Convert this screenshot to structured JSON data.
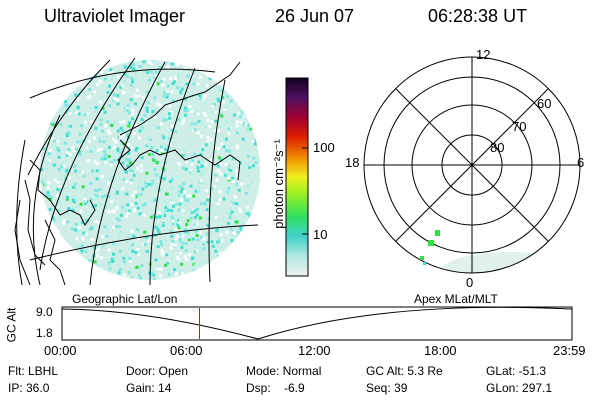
{
  "header": {
    "instrument": "Ultraviolet Imager",
    "date": "26 Jun 07",
    "time": "06:28:38 UT"
  },
  "colorbar": {
    "unit_label": "photon cm⁻²s⁻¹",
    "ticks": [
      "100",
      "10"
    ]
  },
  "polar": {
    "mlt_labels": [
      "12",
      "18",
      "6",
      "0"
    ],
    "lat_labels": [
      "60",
      "70",
      "80"
    ]
  },
  "map_labels": {
    "left": "Geographic Lat/Lon",
    "right": "Apex MLat/MLT"
  },
  "orbit_plot": {
    "ylabel": "GC Alt",
    "ytick_top": "9.0",
    "ytick_bottom": "1.8",
    "xticks": [
      "00:00",
      "06:00",
      "12:00",
      "18:00",
      "23:59"
    ],
    "marker_time_hours": 6.47
  },
  "info": {
    "flt": "Flt: LBHL",
    "ip": "IP: 36.0",
    "door": "Door: Open",
    "gain": "Gain: 14",
    "mode": "Mode: Normal",
    "dsp": "Dsp:    -6.9",
    "gcalt": "GC Alt: 5.3 Re",
    "seq": "Seq: 39",
    "glat": "GLat: -51.3",
    "glon": "GLon: 297.1"
  },
  "colors": {
    "accent_marker": "#ff0000",
    "aurora_speckle": "#40e0d0",
    "aurora_bright": "#30e040"
  }
}
